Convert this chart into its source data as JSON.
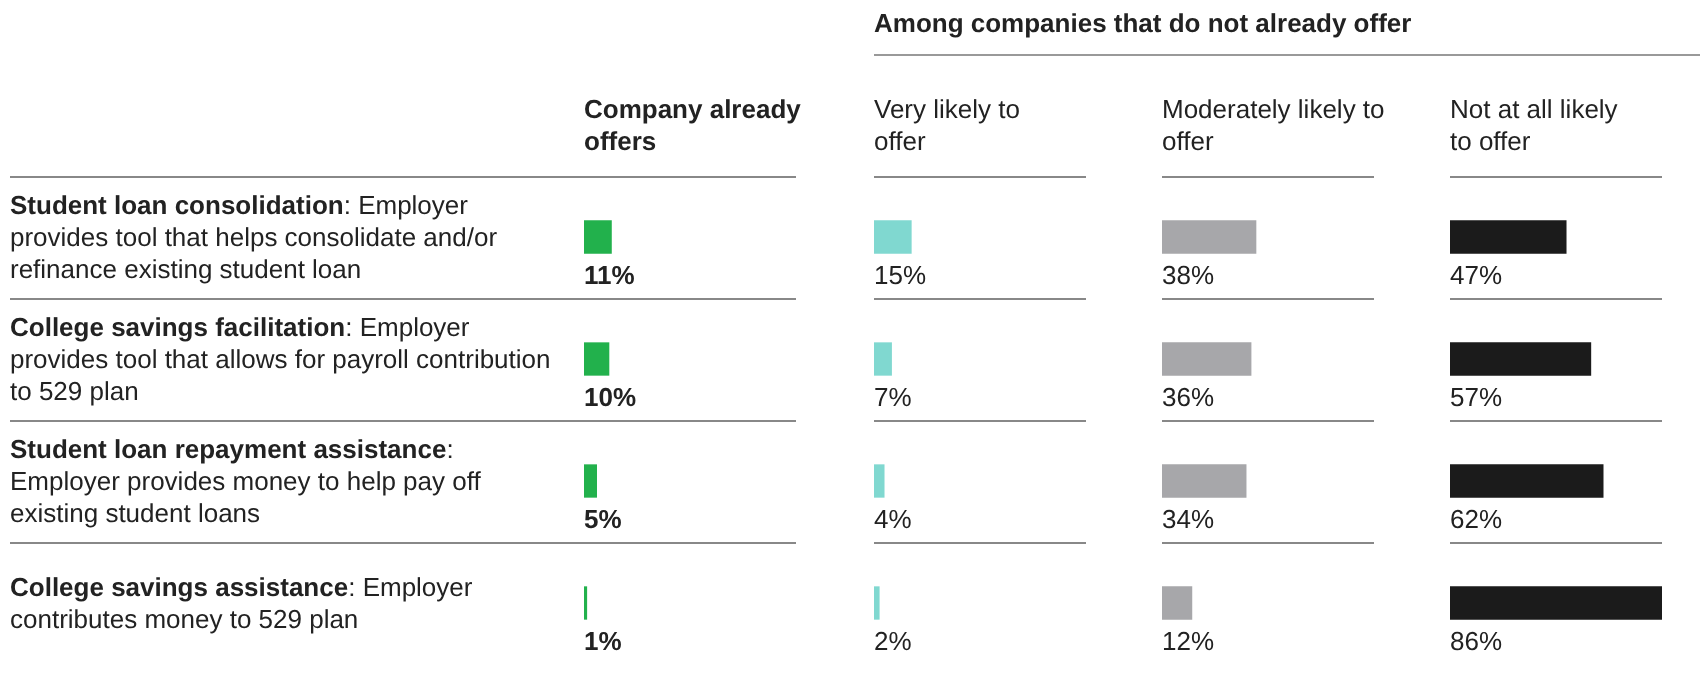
{
  "chart_data": [
    {
      "type": "bar",
      "orientation": "horizontal",
      "title": "Company already offers",
      "categories": [
        "Student loan consolidation: Employer provides tool that helps consolidate and/or refinance existing student loan",
        "College savings facilitation: Employer provides tool that allows for payroll contribution to 529 plan",
        "Student loan repayment assistance: Employer provides money to help pay off existing student loans",
        "College savings assistance: Employer contributes money to 529 plan"
      ],
      "values": [
        11,
        10,
        5,
        1
      ],
      "value_labels": [
        "11%",
        "10%",
        "5%",
        "1%"
      ],
      "color": "#22b14c",
      "tick_labels": "y",
      "legend": false
    },
    {
      "type": "bar",
      "orientation": "horizontal",
      "title": "Very likely to offer",
      "annotations": [
        "Among companies that do not already offer"
      ],
      "categories": [
        null,
        null,
        null,
        null
      ],
      "values": [
        15,
        7,
        4,
        2
      ],
      "value_labels": [
        "15%",
        "7%",
        "4%",
        "2%"
      ],
      "color": "#80d8d0",
      "tick_labels": false,
      "legend": false
    },
    {
      "type": "bar",
      "orientation": "horizontal",
      "title": "Moderately likely to offer",
      "categories": [
        null,
        null,
        null,
        null
      ],
      "values": [
        38,
        36,
        34,
        12
      ],
      "value_labels": [
        "38%",
        "36%",
        "34%",
        "12%"
      ],
      "color": "#a7a7aa",
      "tick_labels": false,
      "legend": false
    },
    {
      "type": "bar",
      "orientation": "horizontal",
      "title": "Not at all likely to offer",
      "categories": [
        null,
        null,
        null,
        null
      ],
      "values": [
        47,
        57,
        62,
        86
      ],
      "value_labels": [
        "47%",
        "57%",
        "62%",
        "86%"
      ],
      "color": "#1b1b1b",
      "tick_labels": false,
      "legend": false
    }
  ]
}
